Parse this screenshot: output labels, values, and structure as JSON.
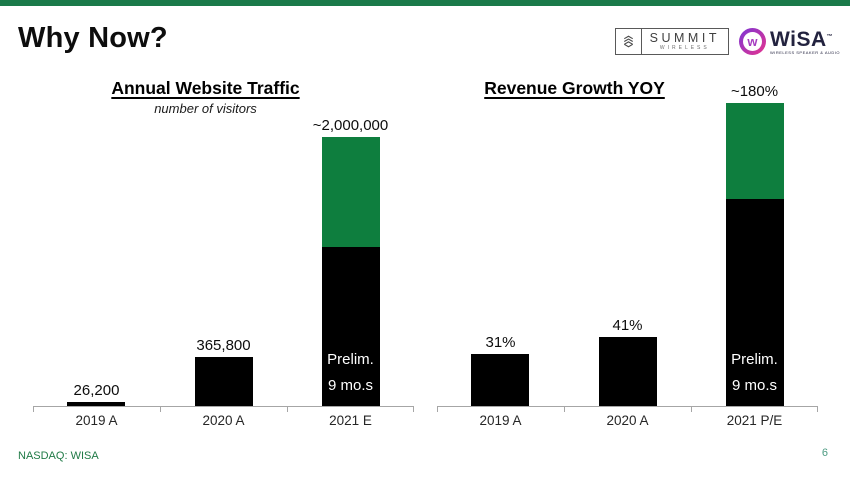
{
  "slide": {
    "title": "Why Now?",
    "footer": {
      "ticker": "NASDAQ: WISA",
      "page_number": "6"
    },
    "colors": {
      "accent_strip_green": "#1A7A4A",
      "bar_green": "#0E7E3E",
      "bar_black": "#000000",
      "axis_gray": "#A6A6A6",
      "footer_green": "#1F7A46",
      "page_number_teal": "#4C9B82"
    }
  },
  "logos": {
    "summit": {
      "wordmark": "SUMMIT",
      "subtext": "WIRELESS",
      "icon": "summit-stacked-s-icon"
    },
    "wisa": {
      "wordmark": "WiSA",
      "trademark": "™",
      "subtext": "WIRELESS SPEAKER & AUDIO",
      "icon_letter": "w",
      "gradient": [
        "#7B35D6",
        "#E8338C"
      ]
    }
  },
  "chart_data": [
    {
      "type": "bar",
      "title": "Annual Website Traffic",
      "subtitle": "number of visitors",
      "categories": [
        "2019 A",
        "2020 A",
        "2021 E"
      ],
      "values": [
        26200,
        365800,
        2000000
      ],
      "data_labels": [
        "26,200",
        "365,800",
        "~2,000,000"
      ],
      "ylim": [
        0,
        2000000
      ],
      "xlabel": "",
      "ylabel": "",
      "grid": false,
      "legend": false,
      "bar_color": "#000000",
      "stacked_bar": {
        "index": 2,
        "segments": [
          {
            "name": "actual-9mo",
            "color": "#000000",
            "value": 1180000
          },
          {
            "name": "estimated-remainder",
            "color": "#0E7E3E",
            "value": 820000
          }
        ],
        "annotation_lines": [
          "Prelim.",
          "9 mo.s"
        ]
      }
    },
    {
      "type": "bar",
      "title": "Revenue Growth YOY",
      "subtitle": "",
      "categories": [
        "2019 A",
        "2020 A",
        "2021 P/E"
      ],
      "values": [
        31,
        41,
        180
      ],
      "data_labels": [
        "31%",
        "41%",
        "~180%"
      ],
      "ylim": [
        0,
        180
      ],
      "xlabel": "",
      "ylabel": "",
      "grid": false,
      "legend": false,
      "bar_color": "#000000",
      "stacked_bar": {
        "index": 2,
        "segments": [
          {
            "name": "actual-9mo",
            "color": "#000000",
            "value": 123
          },
          {
            "name": "estimated-remainder",
            "color": "#0E7E3E",
            "value": 57
          }
        ],
        "annotation_lines": [
          "Prelim.",
          "9 mo.s"
        ]
      }
    }
  ]
}
